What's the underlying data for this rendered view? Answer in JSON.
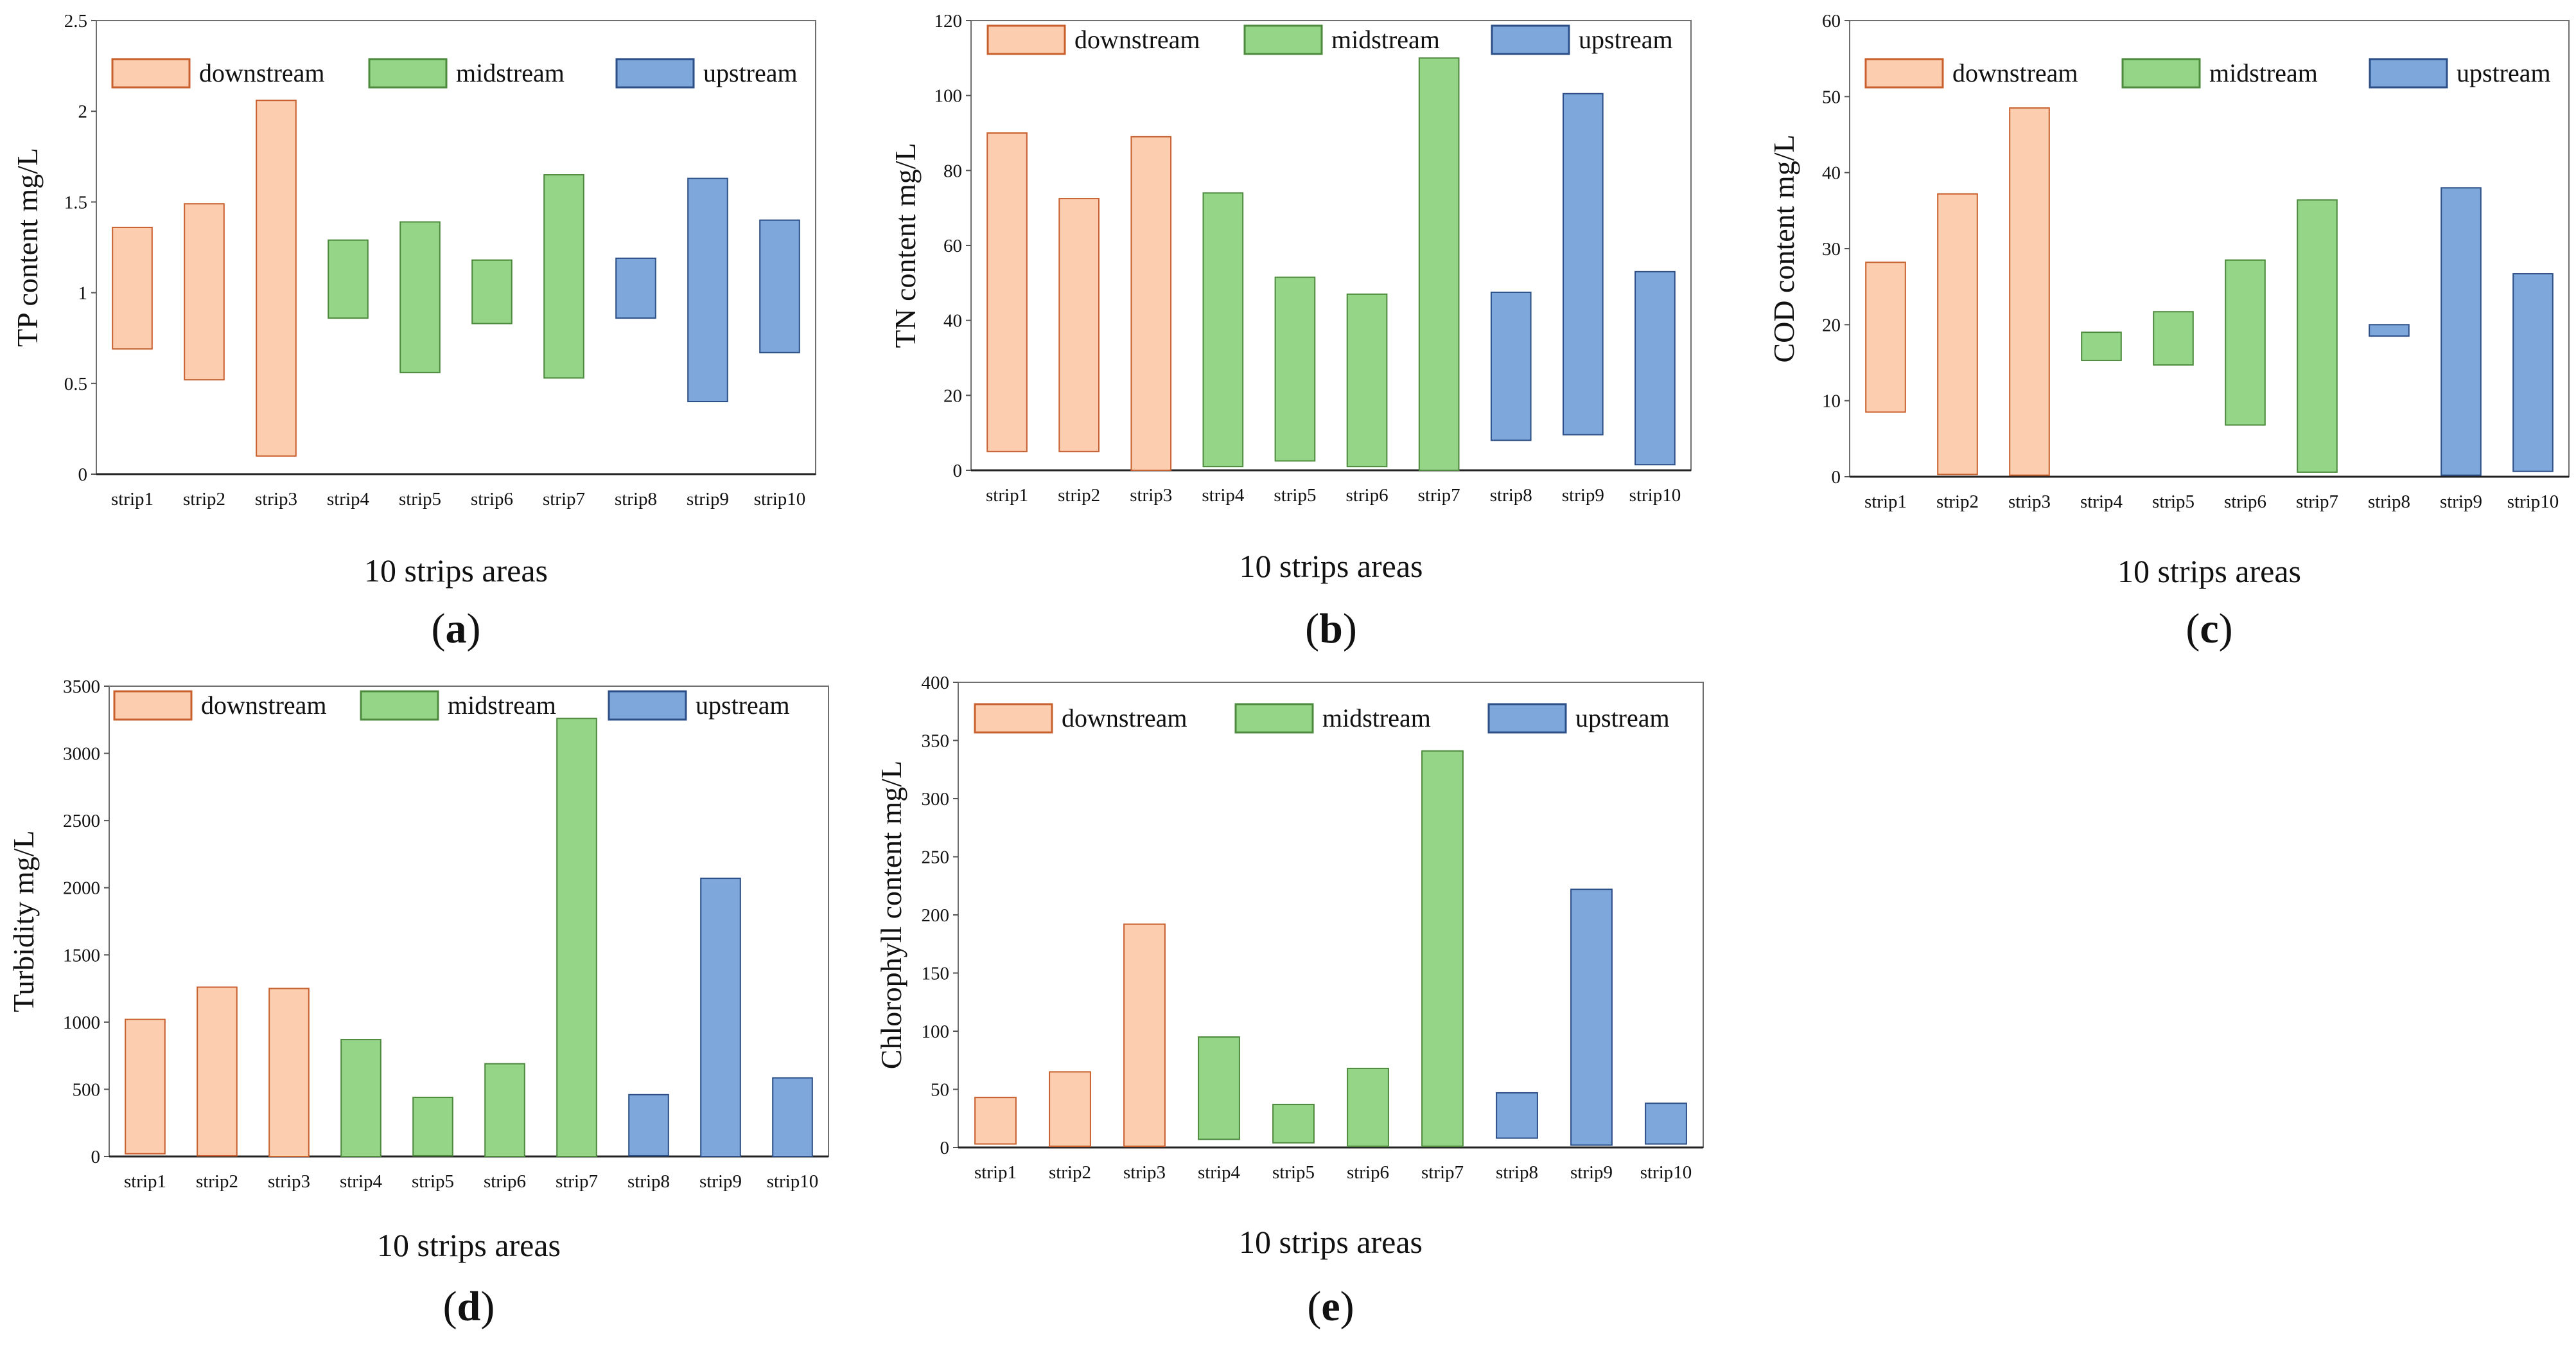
{
  "shared": {
    "categories": [
      "strip1",
      "strip2",
      "strip3",
      "strip4",
      "strip5",
      "strip6",
      "strip7",
      "strip8",
      "strip9",
      "strip10"
    ],
    "groups": [
      "downstream",
      "downstream",
      "downstream",
      "midstream",
      "midstream",
      "midstream",
      "midstream",
      "upstream",
      "upstream",
      "upstream"
    ],
    "legend": [
      {
        "key": "downstream",
        "label": "downstream",
        "fill": "#fdcdb0",
        "stroke": "#c8602e"
      },
      {
        "key": "midstream",
        "label": "midstream",
        "fill": "#95d587",
        "stroke": "#4d8a3e"
      },
      {
        "key": "upstream",
        "label": "upstream",
        "fill": "#7ea7dc",
        "stroke": "#2b4f86"
      }
    ],
    "xlabel": "10 strips areas"
  },
  "chart_data": [
    {
      "id": "a",
      "type": "floating-bar",
      "panel_label": "a",
      "ylabel": "TP content mg/L",
      "xlabel": "10 strips areas",
      "ylim": [
        0,
        2.5
      ],
      "yticks": [
        "0",
        "0.5",
        "1",
        "1.5",
        "2",
        "2.5"
      ],
      "lows": [
        0.69,
        0.52,
        0.1,
        0.86,
        0.56,
        0.83,
        0.53,
        0.86,
        0.4,
        0.67
      ],
      "highs": [
        1.36,
        1.49,
        2.06,
        1.29,
        1.39,
        1.18,
        1.65,
        1.19,
        1.63,
        1.4
      ]
    },
    {
      "id": "b",
      "type": "floating-bar",
      "panel_label": "b",
      "ylabel": "TN content mg/L",
      "xlabel": "10 strips areas",
      "ylim": [
        0,
        120
      ],
      "yticks": [
        "0",
        "20",
        "40",
        "60",
        "80",
        "100",
        "120"
      ],
      "lows": [
        5,
        5,
        0,
        1,
        2.5,
        1,
        0,
        8,
        9.5,
        1.5
      ],
      "highs": [
        90,
        72.5,
        89,
        74,
        51.5,
        47,
        110,
        47.5,
        100.5,
        53
      ]
    },
    {
      "id": "c",
      "type": "floating-bar",
      "panel_label": "c",
      "ylabel": "COD content mg/L",
      "xlabel": "10 strips areas",
      "ylim": [
        0,
        60
      ],
      "yticks": [
        "0",
        "10",
        "20",
        "30",
        "40",
        "50",
        "60"
      ],
      "lows": [
        8.5,
        0.3,
        0.2,
        15.3,
        14.7,
        6.8,
        0.6,
        18.5,
        0.2,
        0.7
      ],
      "highs": [
        28.2,
        37.2,
        48.5,
        19,
        21.7,
        28.5,
        36.4,
        20,
        38,
        26.7
      ]
    },
    {
      "id": "d",
      "type": "floating-bar",
      "panel_label": "d",
      "ylabel": "Turbidity mg/L",
      "xlabel": "10 strips areas",
      "ylim": [
        0,
        3500
      ],
      "yticks": [
        "0",
        "500",
        "1000",
        "1500",
        "2000",
        "2500",
        "3000",
        "3500"
      ],
      "lows": [
        20,
        5,
        0,
        0,
        5,
        0,
        0,
        5,
        0,
        0
      ],
      "highs": [
        1020,
        1260,
        1250,
        870,
        440,
        690,
        3260,
        460,
        2070,
        585
      ]
    },
    {
      "id": "e",
      "type": "floating-bar",
      "panel_label": "e",
      "ylabel": "Chlorophyll content mg/L",
      "xlabel": "10 strips areas",
      "ylim": [
        0,
        400
      ],
      "yticks": [
        "0",
        "50",
        "100",
        "150",
        "200",
        "250",
        "300",
        "350",
        "400"
      ],
      "lows": [
        3,
        1,
        1,
        7,
        4,
        1,
        1,
        8,
        2,
        3
      ],
      "highs": [
        43,
        65,
        192,
        95,
        37,
        68,
        341,
        47,
        222,
        38
      ]
    }
  ]
}
